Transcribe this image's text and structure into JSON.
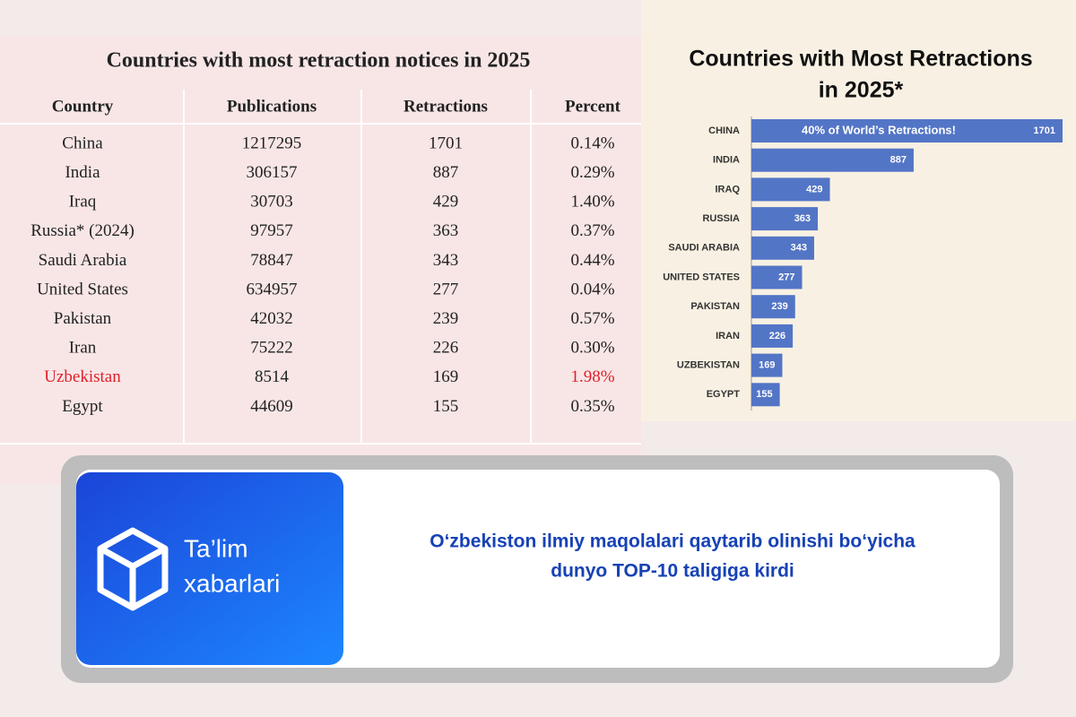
{
  "table": {
    "title": "Countries with most retraction notices in 2025",
    "columns": [
      "Country",
      "Publications",
      "Retractions",
      "Percent"
    ],
    "rows": [
      [
        "China",
        "1217295",
        "1701",
        "0.14%"
      ],
      [
        "India",
        "306157",
        "887",
        "0.29%"
      ],
      [
        "Iraq",
        "30703",
        "429",
        "1.40%"
      ],
      [
        "Russia* (2024)",
        "97957",
        "363",
        "0.37%"
      ],
      [
        "Saudi Arabia",
        "78847",
        "343",
        "0.44%"
      ],
      [
        "United States",
        "634957",
        "277",
        "0.04%"
      ],
      [
        "Pakistan",
        "42032",
        "239",
        "0.57%"
      ],
      [
        "Iran",
        "75222",
        "226",
        "0.30%"
      ],
      [
        "Uzbekistan",
        "8514",
        "169",
        "1.98%"
      ],
      [
        "Egypt",
        "44609",
        "155",
        "0.35%"
      ]
    ]
  },
  "chart_data": {
    "type": "bar",
    "orientation": "horizontal",
    "title": [
      "Countries with Most Retractions",
      "in 2025*"
    ],
    "annotation": "40% of World’s Retractions!",
    "categories": [
      "CHINA",
      "INDIA",
      "IRAQ",
      "RUSSIA",
      "SAUDI ARABIA",
      "UNITED STATES",
      "PAKISTAN",
      "IRAN",
      "UZBEKISTAN",
      "EGYPT"
    ],
    "values": [
      1701,
      887,
      429,
      363,
      343,
      277,
      239,
      226,
      169,
      155
    ],
    "color": "#5375c6",
    "xlim": [
      0,
      1750
    ]
  },
  "banner": {
    "logo": [
      "Ta’lim",
      "xabarlari"
    ],
    "headline": [
      "O‘zbekiston ilmiy maqolalari qaytarib olinishi bo‘yicha",
      "dunyo TOP-10 taligiga kirdi"
    ]
  }
}
